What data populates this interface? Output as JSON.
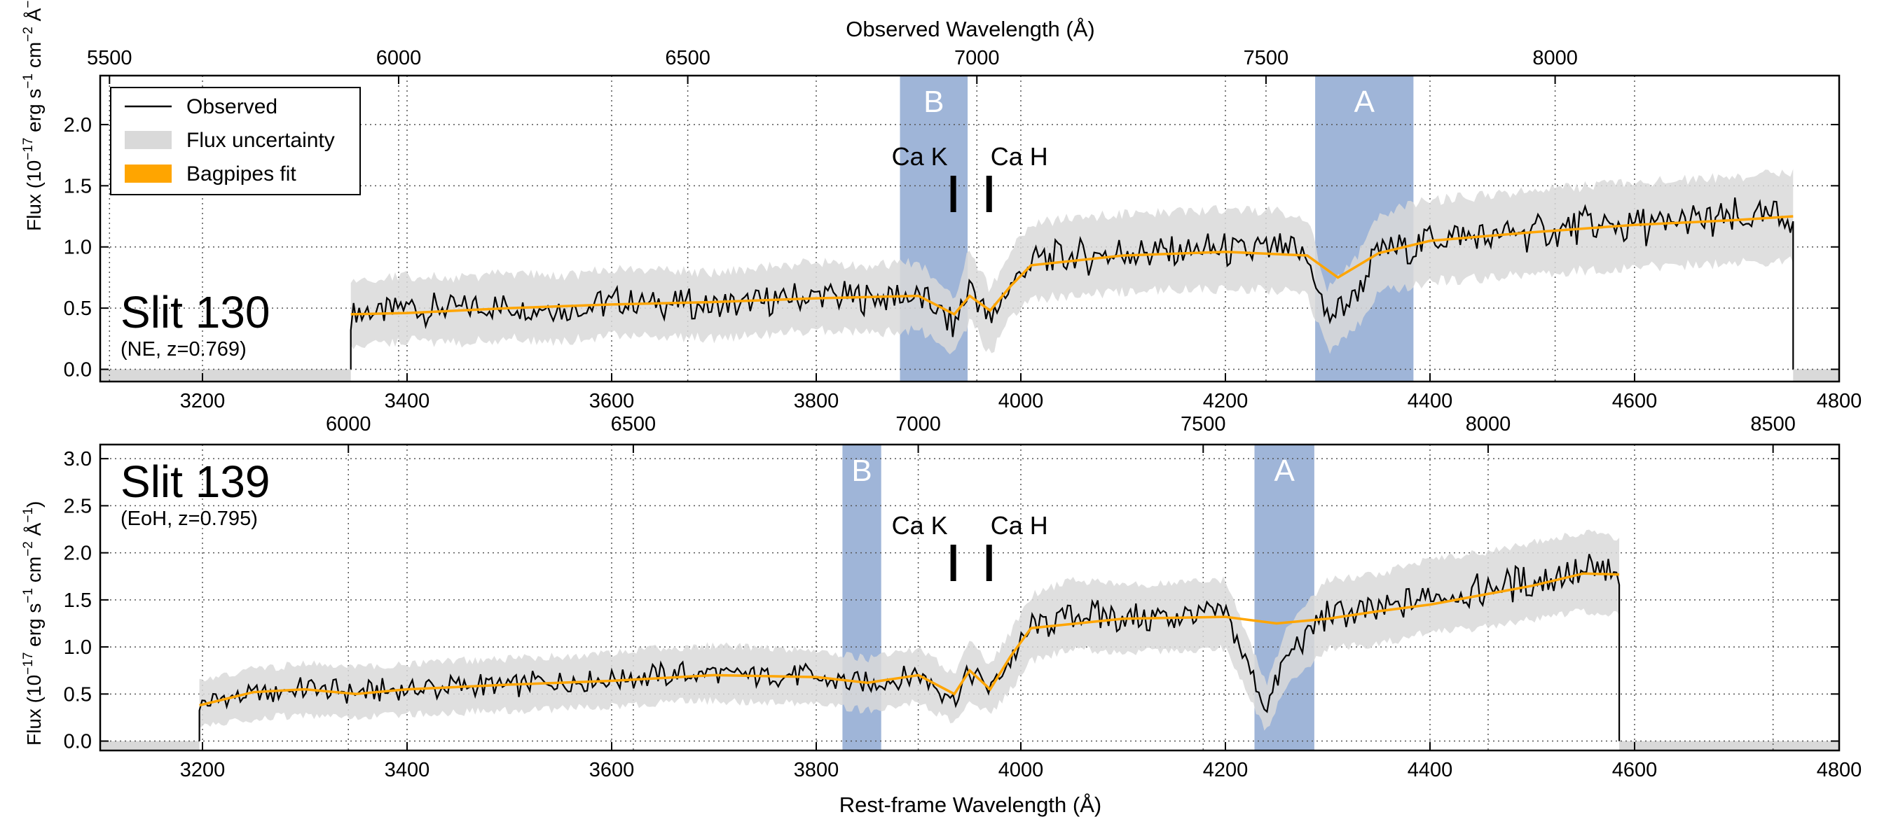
{
  "figure": {
    "top_axis_label": "Observed Wavelength (Å)",
    "bottom_axis_label": "Rest-frame Wavelength (Å)",
    "ylabel_main": "Flux (10",
    "ylabel_exp": "−17",
    "ylabel_unit1": " erg s",
    "ylabel_exp2": "−1",
    "ylabel_unit2": " cm",
    "ylabel_exp3": "−2",
    "ylabel_unit3": " Å",
    "ylabel_exp4": "−1",
    "ylabel_close": ")"
  },
  "legend": {
    "observed": "Observed",
    "uncertainty": "Flux uncertainty",
    "fit": "Bagpipes fit"
  },
  "colors": {
    "observed": "#000000",
    "uncertainty": "#d9d9d9",
    "fit": "#ffa500",
    "band": "#7f9ccb"
  },
  "chart_data": [
    {
      "type": "line",
      "panel": "top",
      "title": "Slit 130",
      "subtitle": "(NE, z=0.769)",
      "redshift": 0.769,
      "xlim": [
        3100,
        4800
      ],
      "ylim": [
        -0.1,
        2.4
      ],
      "x_ticks": [
        3200,
        3400,
        3600,
        3800,
        4000,
        4200,
        4400,
        4600,
        4800
      ],
      "y_ticks": [
        0.0,
        0.5,
        1.0,
        1.5,
        2.0
      ],
      "y_tick_labels": [
        "0.0",
        "0.5",
        "1.0",
        "1.5",
        "2.0"
      ],
      "top_ticks": [
        5500,
        6000,
        6500,
        7000,
        7500,
        8000
      ],
      "data_start": 3345,
      "data_end": 4755,
      "bands": [
        {
          "label": "B",
          "x0": 6867,
          "x1": 6984
        },
        {
          "label": "A",
          "x0": 7585,
          "x1": 7755
        }
      ],
      "lines": [
        {
          "label": "Ca K",
          "x": 3934
        },
        {
          "label": "Ca H",
          "x": 3969
        }
      ],
      "series": [
        {
          "name": "Observed",
          "x": [
            3345,
            3400,
            3450,
            3500,
            3550,
            3600,
            3650,
            3700,
            3750,
            3800,
            3850,
            3900,
            3935,
            3950,
            3970,
            3990,
            4010,
            4050,
            4100,
            4150,
            4200,
            4250,
            4280,
            4300,
            4330,
            4350,
            4400,
            4450,
            4500,
            4550,
            4600,
            4650,
            4700,
            4755
          ],
          "y": [
            0.45,
            0.5,
            0.48,
            0.52,
            0.49,
            0.55,
            0.54,
            0.52,
            0.56,
            0.6,
            0.57,
            0.6,
            0.35,
            0.7,
            0.38,
            0.7,
            0.88,
            0.92,
            0.95,
            0.97,
            0.98,
            0.97,
            0.92,
            0.4,
            0.65,
            0.95,
            1.05,
            1.08,
            1.12,
            1.15,
            1.18,
            1.2,
            1.22,
            1.25
          ]
        },
        {
          "name": "Bagpipes fit",
          "x": [
            3345,
            3400,
            3500,
            3600,
            3700,
            3800,
            3900,
            3935,
            3950,
            3970,
            3990,
            4010,
            4100,
            4200,
            4280,
            4310,
            4350,
            4400,
            4500,
            4600,
            4700,
            4755
          ],
          "y": [
            0.45,
            0.46,
            0.5,
            0.53,
            0.55,
            0.58,
            0.6,
            0.45,
            0.6,
            0.48,
            0.68,
            0.85,
            0.93,
            0.96,
            0.93,
            0.75,
            0.95,
            1.05,
            1.12,
            1.18,
            1.22,
            1.25
          ]
        }
      ]
    },
    {
      "type": "line",
      "panel": "bottom",
      "title": "Slit 139",
      "subtitle": "(EoH, z=0.795)",
      "redshift": 0.795,
      "xlim": [
        3100,
        4800
      ],
      "ylim": [
        -0.1,
        3.15
      ],
      "x_ticks": [
        3200,
        3400,
        3600,
        3800,
        4000,
        4200,
        4400,
        4600,
        4800
      ],
      "y_ticks": [
        0.0,
        0.5,
        1.0,
        1.5,
        2.0,
        2.5,
        3.0
      ],
      "y_tick_labels": [
        "0.0",
        "0.5",
        "1.0",
        "1.5",
        "2.0",
        "2.5",
        "3.0"
      ],
      "top_ticks": [
        6000,
        6500,
        7000,
        7500,
        8000,
        8500
      ],
      "data_start": 3197,
      "data_end": 4585,
      "bands": [
        {
          "label": "B",
          "x0": 6867,
          "x1": 6935
        },
        {
          "label": "A",
          "x0": 7590,
          "x1": 7695
        }
      ],
      "lines": [
        {
          "label": "Ca K",
          "x": 3934
        },
        {
          "label": "Ca H",
          "x": 3969
        }
      ],
      "series": [
        {
          "name": "Observed",
          "x": [
            3197,
            3250,
            3300,
            3350,
            3400,
            3450,
            3500,
            3550,
            3600,
            3650,
            3700,
            3750,
            3800,
            3850,
            3900,
            3935,
            3950,
            3970,
            3990,
            4010,
            4050,
            4100,
            4150,
            4200,
            4240,
            4260,
            4300,
            4350,
            4400,
            4450,
            4500,
            4550,
            4585
          ],
          "y": [
            0.4,
            0.5,
            0.55,
            0.52,
            0.55,
            0.58,
            0.6,
            0.62,
            0.65,
            0.7,
            0.72,
            0.7,
            0.68,
            0.6,
            0.7,
            0.45,
            0.75,
            0.55,
            0.85,
            1.2,
            1.35,
            1.3,
            1.32,
            1.35,
            0.35,
            0.9,
            1.35,
            1.4,
            1.55,
            1.6,
            1.7,
            1.8,
            1.75
          ]
        },
        {
          "name": "Bagpipes fit",
          "x": [
            3197,
            3250,
            3300,
            3350,
            3400,
            3500,
            3600,
            3700,
            3800,
            3850,
            3900,
            3935,
            3950,
            3970,
            3990,
            4010,
            4100,
            4200,
            4250,
            4300,
            4350,
            4400,
            4500,
            4550,
            4585
          ],
          "y": [
            0.38,
            0.52,
            0.55,
            0.5,
            0.55,
            0.6,
            0.64,
            0.7,
            0.68,
            0.62,
            0.7,
            0.5,
            0.75,
            0.55,
            0.9,
            1.2,
            1.3,
            1.32,
            1.25,
            1.3,
            1.38,
            1.45,
            1.65,
            1.78,
            1.77
          ]
        }
      ]
    }
  ]
}
